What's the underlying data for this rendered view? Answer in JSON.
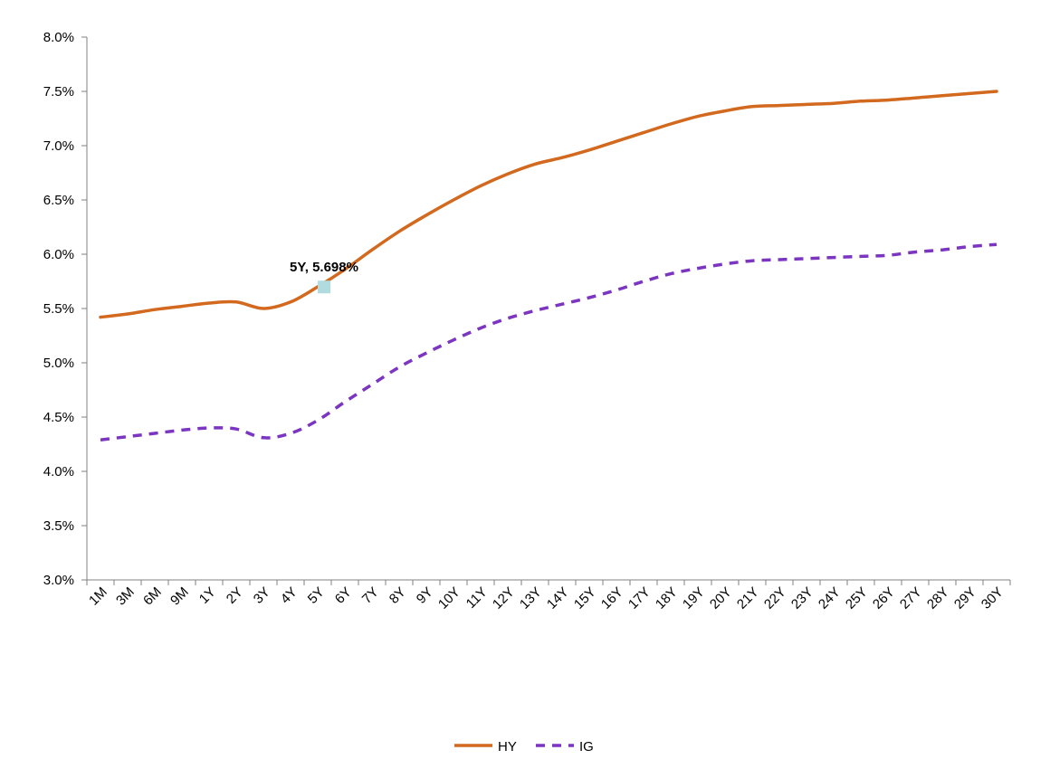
{
  "chart_data": {
    "type": "line",
    "title": "",
    "xlabel": "",
    "ylabel": "",
    "categories": [
      "1M",
      "3M",
      "6M",
      "9M",
      "1Y",
      "2Y",
      "3Y",
      "4Y",
      "5Y",
      "6Y",
      "7Y",
      "8Y",
      "9Y",
      "10Y",
      "11Y",
      "12Y",
      "13Y",
      "14Y",
      "15Y",
      "16Y",
      "17Y",
      "18Y",
      "19Y",
      "20Y",
      "21Y",
      "22Y",
      "23Y",
      "24Y",
      "25Y",
      "26Y",
      "27Y",
      "28Y",
      "29Y",
      "30Y"
    ],
    "y_tick_labels": [
      "8.0%",
      "7.5%",
      "7.0%",
      "6.5%",
      "6.0%",
      "5.5%",
      "5.0%",
      "4.5%",
      "4.0%",
      "3.5%",
      "3.0%"
    ],
    "ylim": [
      3.0,
      8.0
    ],
    "y_step": 0.5,
    "grid": false,
    "legend_position": "bottom",
    "series": [
      {
        "name": "HY",
        "color": "#D2691E",
        "dash": "solid",
        "values": [
          5.42,
          5.45,
          5.49,
          5.52,
          5.55,
          5.56,
          5.5,
          5.56,
          5.7,
          5.86,
          6.04,
          6.21,
          6.36,
          6.5,
          6.63,
          6.74,
          6.83,
          6.89,
          6.96,
          7.04,
          7.12,
          7.2,
          7.27,
          7.32,
          7.36,
          7.37,
          7.38,
          7.39,
          7.41,
          7.42,
          7.44,
          7.46,
          7.48,
          7.5
        ]
      },
      {
        "name": "IG",
        "color": "#7B35C1",
        "dash": "dashed",
        "values": [
          4.29,
          4.32,
          4.35,
          4.38,
          4.4,
          4.39,
          4.31,
          4.35,
          4.47,
          4.64,
          4.8,
          4.96,
          5.09,
          5.21,
          5.32,
          5.41,
          5.48,
          5.54,
          5.6,
          5.67,
          5.75,
          5.82,
          5.87,
          5.91,
          5.94,
          5.95,
          5.96,
          5.97,
          5.98,
          5.99,
          6.02,
          6.04,
          6.07,
          6.09
        ]
      }
    ],
    "annotation": {
      "text": "5Y, 5.698%",
      "category": "5Y",
      "value": 5.698,
      "marker_color": "#B0DCE0"
    }
  }
}
